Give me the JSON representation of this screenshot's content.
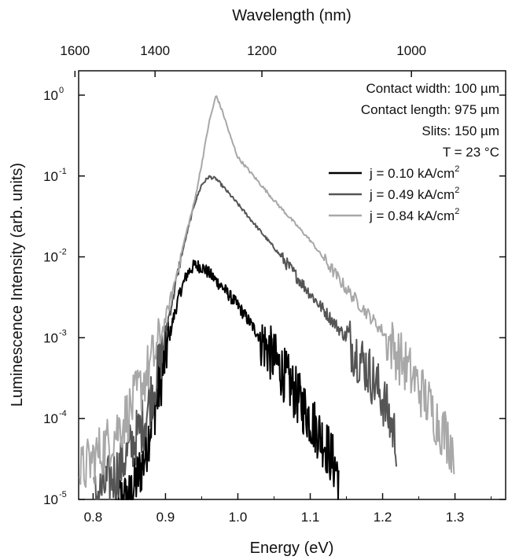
{
  "chart_data": {
    "type": "line",
    "xlabel": "Energy (eV)",
    "x2label": "Wavelength (nm)",
    "ylabel": "Luminescence Intensity (arb. units)",
    "xlim": [
      0.78,
      1.37
    ],
    "ylim": [
      1e-05,
      2
    ],
    "yscale": "log",
    "x_ticks": [
      0.8,
      0.9,
      1.0,
      1.1,
      1.2,
      1.3
    ],
    "x_tick_labels": [
      "0.8",
      "0.9",
      "1.0",
      "1.1",
      "1.2",
      "1.3"
    ],
    "x2_ticks_nm": [
      1600,
      1400,
      1200,
      1000
    ],
    "x2_tick_labels": [
      "1600",
      "1400",
      "1200",
      "1000"
    ],
    "y_ticks": [
      {
        "value": 1,
        "base": "10",
        "exp": "0"
      },
      {
        "value": 0.1,
        "base": "10",
        "exp": "-1"
      },
      {
        "value": 0.01,
        "base": "10",
        "exp": "-2"
      },
      {
        "value": 0.001,
        "base": "10",
        "exp": "-3"
      },
      {
        "value": 0.0001,
        "base": "10",
        "exp": "-4"
      },
      {
        "value": 1e-05,
        "base": "10",
        "exp": "-5"
      }
    ],
    "annotations": [
      "Contact width: 100 µm",
      "Contact length: 975 µm",
      "Slits: 150 µm",
      "T = 23 °C"
    ],
    "legend_position": "top-right",
    "series": [
      {
        "name": "j = 0.10 kA/cm",
        "name_sup": "2",
        "color": "#000000",
        "x": [
          0.83,
          0.85,
          0.87,
          0.88,
          0.89,
          0.9,
          0.91,
          0.92,
          0.93,
          0.94,
          0.95,
          0.96,
          0.98,
          1.0,
          1.02,
          1.04,
          1.06,
          1.08,
          1.1,
          1.12,
          1.14
        ],
        "y": [
          1e-05,
          1e-05,
          3e-05,
          9e-05,
          0.0002,
          0.0006,
          0.0016,
          0.0036,
          0.0062,
          0.0079,
          0.0075,
          0.0063,
          0.0041,
          0.0025,
          0.0014,
          0.00075,
          0.0004,
          0.0002,
          0.0001,
          5e-05,
          2e-05
        ]
      },
      {
        "name": "j = 0.49 kA/cm",
        "name_sup": "2",
        "color": "#555555",
        "x": [
          0.8,
          0.83,
          0.85,
          0.87,
          0.89,
          0.9,
          0.91,
          0.92,
          0.93,
          0.94,
          0.95,
          0.96,
          0.97,
          0.98,
          1.0,
          1.05,
          1.1,
          1.15,
          1.18,
          1.2,
          1.22
        ],
        "y": [
          1e-05,
          2e-05,
          4e-05,
          9e-05,
          0.0004,
          0.0012,
          0.003,
          0.0085,
          0.02,
          0.045,
          0.078,
          0.098,
          0.092,
          0.073,
          0.045,
          0.013,
          0.0035,
          0.001,
          0.0004,
          0.00018,
          5e-05
        ]
      },
      {
        "name": "j = 0.84 kA/cm",
        "name_sup": "2",
        "color": "#a8a8a8",
        "x": [
          0.78,
          0.82,
          0.85,
          0.87,
          0.89,
          0.9,
          0.91,
          0.92,
          0.93,
          0.94,
          0.95,
          0.96,
          0.97,
          0.98,
          0.99,
          1.0,
          1.05,
          1.1,
          1.15,
          1.2,
          1.25,
          1.28,
          1.3
        ],
        "y": [
          2e-05,
          5e-05,
          0.00012,
          0.0003,
          0.0008,
          0.0017,
          0.0038,
          0.0095,
          0.022,
          0.048,
          0.14,
          0.45,
          1.0,
          0.58,
          0.3,
          0.17,
          0.05,
          0.016,
          0.004,
          0.0012,
          0.00025,
          8e-05,
          4e-05
        ]
      }
    ]
  }
}
